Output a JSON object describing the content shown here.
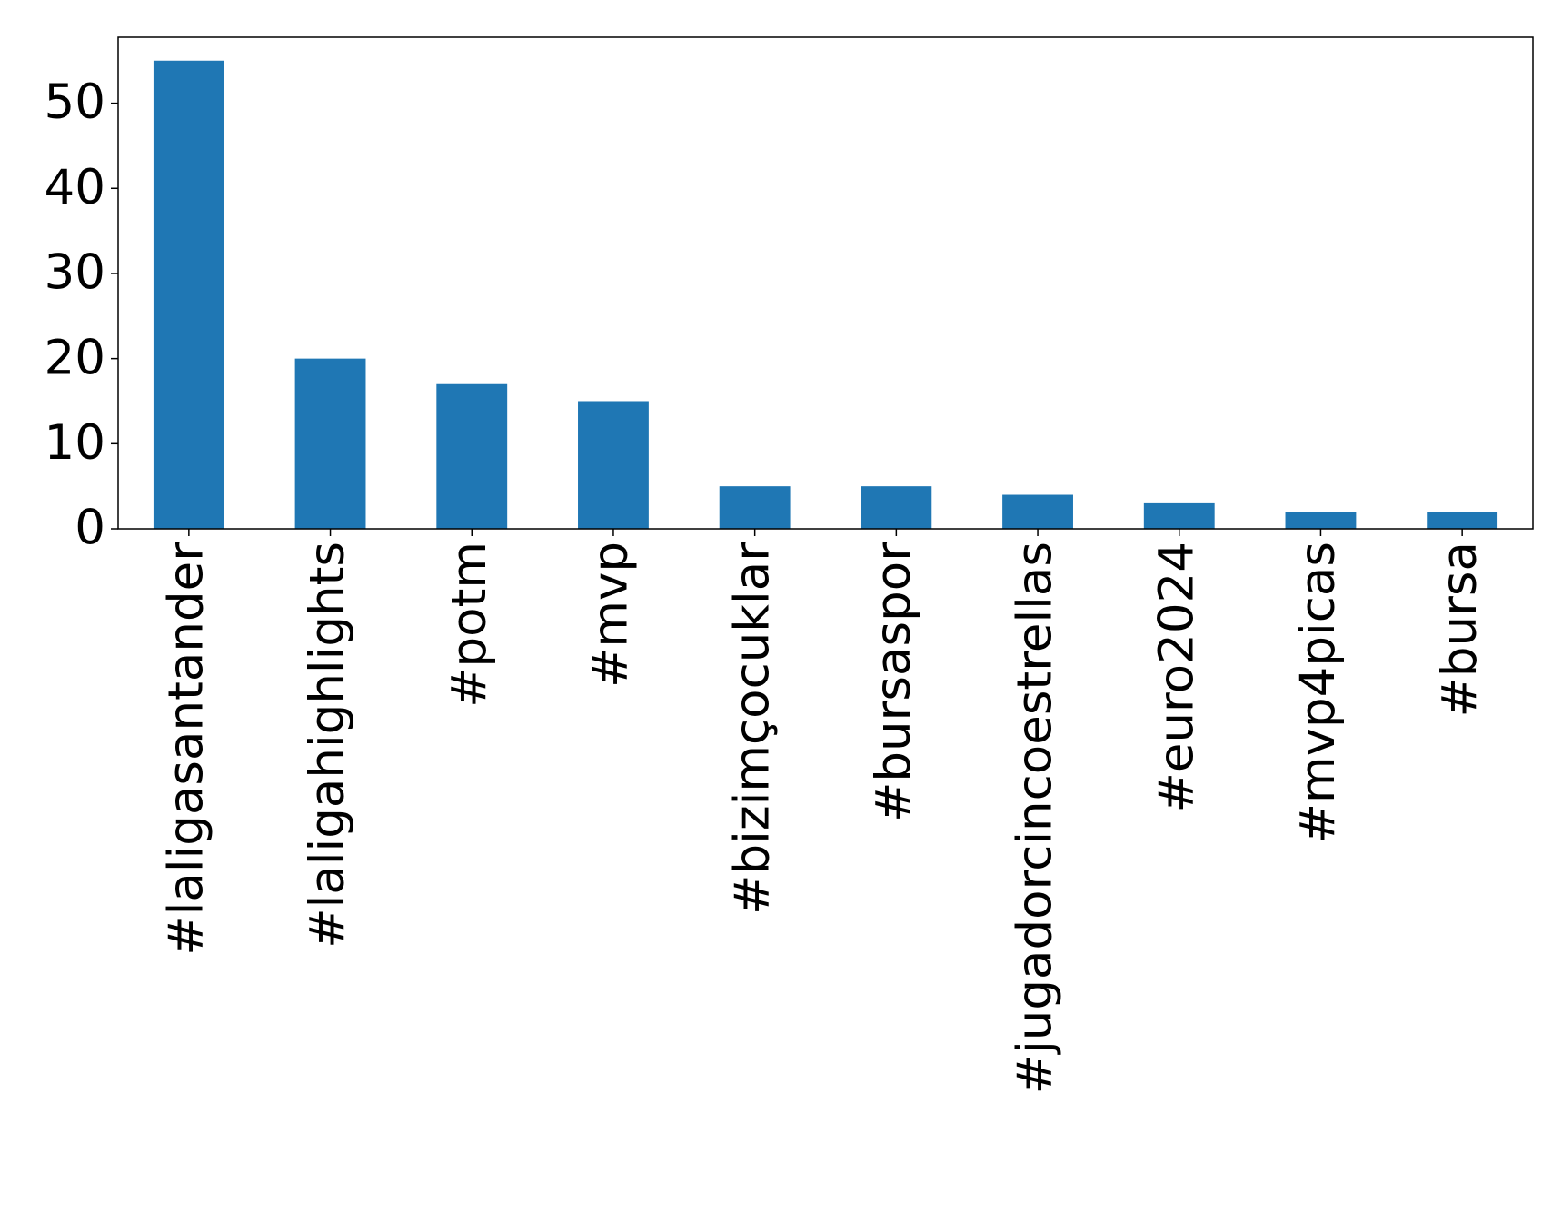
{
  "chart_data": {
    "type": "bar",
    "categories": [
      "#laligasantander",
      "#laligahighlights",
      "#potm",
      "#mvp",
      "#bizimçocuklar",
      "#bursaspor",
      "#jugadorcincoestrellas",
      "#euro2024",
      "#mvp4picas",
      "#bursa"
    ],
    "values": [
      55,
      20,
      17,
      15,
      5,
      5,
      4,
      3,
      2,
      2
    ],
    "color": "#1f77b4",
    "ylim": [
      0,
      57.75
    ],
    "yticks": [
      0,
      10,
      20,
      30,
      40,
      50
    ],
    "grid": false
  }
}
